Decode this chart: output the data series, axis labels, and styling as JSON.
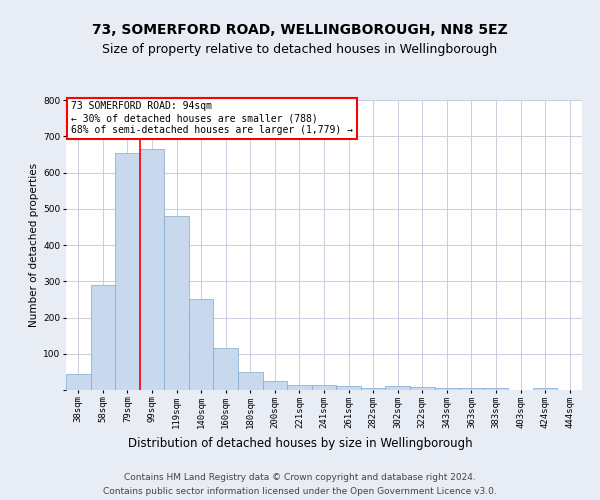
{
  "title": "73, SOMERFORD ROAD, WELLINGBOROUGH, NN8 5EZ",
  "subtitle": "Size of property relative to detached houses in Wellingborough",
  "xlabel": "Distribution of detached houses by size in Wellingborough",
  "ylabel": "Number of detached properties",
  "categories": [
    "38sqm",
    "58sqm",
    "79sqm",
    "99sqm",
    "119sqm",
    "140sqm",
    "160sqm",
    "180sqm",
    "200sqm",
    "221sqm",
    "241sqm",
    "261sqm",
    "282sqm",
    "302sqm",
    "322sqm",
    "343sqm",
    "363sqm",
    "383sqm",
    "403sqm",
    "424sqm",
    "444sqm"
  ],
  "values": [
    45,
    290,
    655,
    665,
    480,
    250,
    115,
    50,
    25,
    15,
    15,
    10,
    5,
    10,
    8,
    5,
    5,
    5,
    1,
    5,
    1
  ],
  "bar_color": "#c9d9ed",
  "bar_edge_color": "#7fa8cc",
  "vline_index": 3,
  "annotation_text": "73 SOMERFORD ROAD: 94sqm\n← 30% of detached houses are smaller (788)\n68% of semi-detached houses are larger (1,779) →",
  "annotation_box_color": "white",
  "annotation_box_edge_color": "red",
  "vline_color": "red",
  "ylim": [
    0,
    800
  ],
  "yticks": [
    0,
    100,
    200,
    300,
    400,
    500,
    600,
    700,
    800
  ],
  "background_color": "#e8ecf5",
  "plot_bg_color": "white",
  "grid_color": "#c0c8d8",
  "footer_line1": "Contains HM Land Registry data © Crown copyright and database right 2024.",
  "footer_line2": "Contains public sector information licensed under the Open Government Licence v3.0.",
  "title_fontsize": 10,
  "subtitle_fontsize": 9,
  "xlabel_fontsize": 8.5,
  "ylabel_fontsize": 7.5,
  "tick_fontsize": 6.5,
  "annotation_fontsize": 7,
  "footer_fontsize": 6.5
}
